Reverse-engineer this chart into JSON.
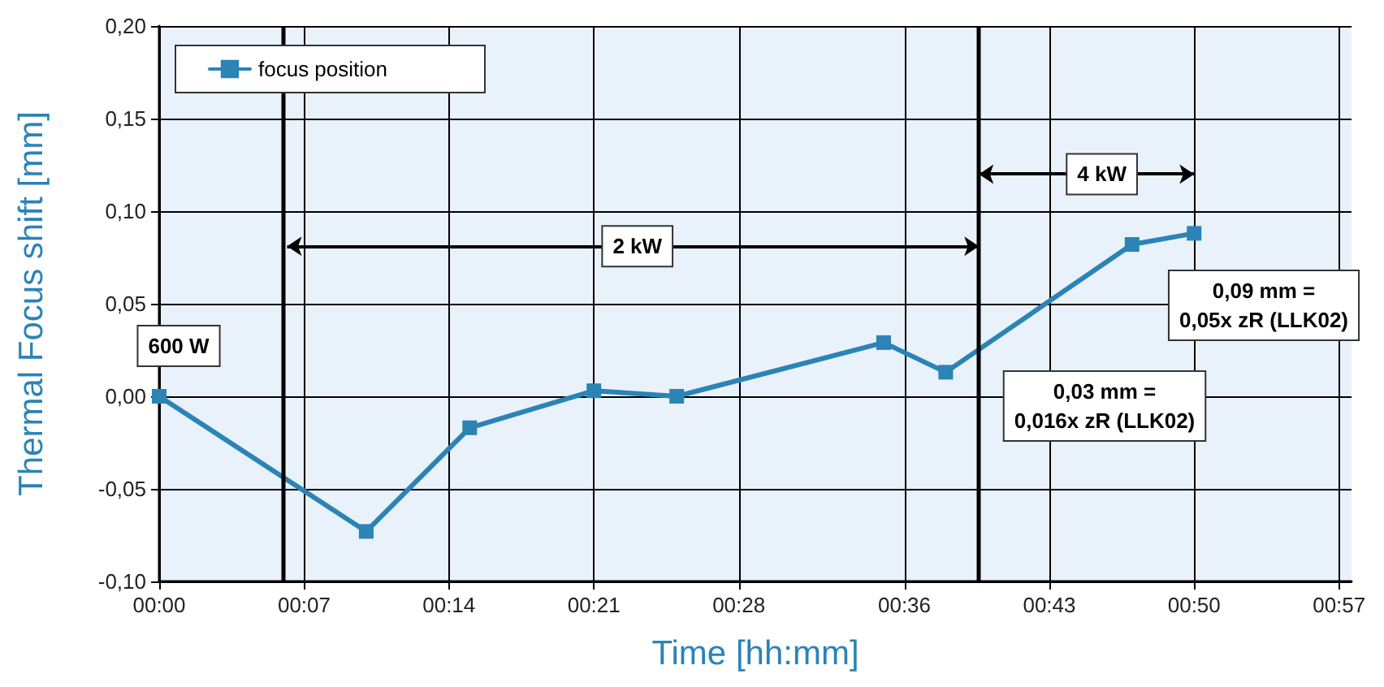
{
  "chart_data": {
    "type": "line",
    "xlabel": "Time [hh:mm]",
    "ylabel": "Thermal Focus shift [mm]",
    "x": [
      0,
      0.1667,
      0.25,
      0.35,
      0.4167,
      0.5833,
      0.6333,
      0.7833,
      0.8333
    ],
    "series": [
      {
        "name": "focus position",
        "color": "#2b83b6",
        "values": [
          0,
          -0.073,
          -0.017,
          0.003,
          0,
          0.029,
          0.013,
          0.082,
          0.088
        ]
      }
    ],
    "xlim": [
      0,
      0.96
    ],
    "xticks": [
      {
        "value": 0,
        "label": "00:00"
      },
      {
        "value": 0.1167,
        "label": "00:07"
      },
      {
        "value": 0.2333,
        "label": "00:14"
      },
      {
        "value": 0.35,
        "label": "00:21"
      },
      {
        "value": 0.4667,
        "label": "00:28"
      },
      {
        "value": 0.6,
        "label": "00:36"
      },
      {
        "value": 0.7167,
        "label": "00:43"
      },
      {
        "value": 0.8333,
        "label": "00:50"
      },
      {
        "value": 0.95,
        "label": "00:57"
      }
    ],
    "ylim": [
      -0.1,
      0.2
    ],
    "yticks": [
      {
        "value": -0.1,
        "label": "-0,10"
      },
      {
        "value": -0.05,
        "label": "-0,05"
      },
      {
        "value": 0,
        "label": "0,00"
      },
      {
        "value": 0.05,
        "label": "0,05"
      },
      {
        "value": 0.1,
        "label": "0,10"
      },
      {
        "value": 0.15,
        "label": "0,15"
      },
      {
        "value": 0.2,
        "label": "0,20"
      }
    ],
    "ref_lines": [
      {
        "axis": "x",
        "value": 0.103,
        "color": "#000000"
      },
      {
        "axis": "x",
        "value": 0.66,
        "color": "#000000"
      }
    ],
    "annotations": [
      "600 W",
      {
        "text": "2 kW",
        "x": 0.385,
        "y": 0.081
      },
      {
        "text": "4 kW",
        "x": 0.759,
        "y": 0.12
      },
      "0,09 mm =\n0,05x zR (LLK02)",
      "0,03 mm =\n0,016x zR (LLK02)"
    ],
    "grid": true,
    "legend": "top left",
    "marker": "square",
    "line_style": "solid"
  }
}
